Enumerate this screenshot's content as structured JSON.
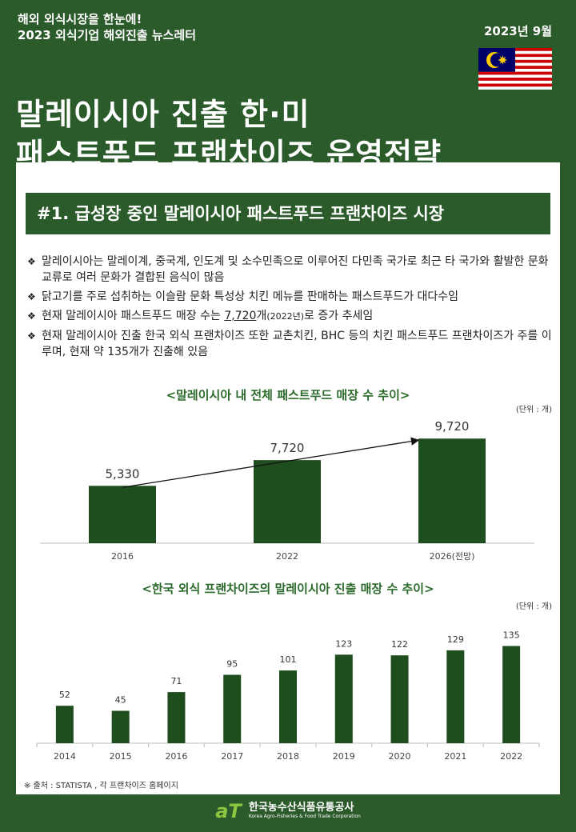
{
  "header": {
    "line1": "해외 외식시장을 한눈에!",
    "line2": "2023 외식기업 해외진출 뉴스레터",
    "date": "2023년 9월",
    "flag_icon": "malaysia-flag-icon"
  },
  "title": {
    "line1": "말레이시아 진출 한·미",
    "line2": "패스트푸드 프랜차이즈 운영전략"
  },
  "section": {
    "heading": "#1. 급성장 중인 말레이시아 패스트푸드 프랜차이즈 시장"
  },
  "bullets": {
    "marker": "❖",
    "b1": "말레이시아는 말레이계, 중국계, 인도계 및 소수민족으로 이루어진 다민족 국가로 최근 타 국가와 활발한 문화교류로 여러 문화가 결합된 음식이 많음",
    "b2": "닭고기를 주로 섭취하는 이슬람 문화 특성상 치킨 메뉴를 판매하는 패스트푸드가 대다수임",
    "b3_pre": "현재 말레이시아 패스트푸드 매장 수는 ",
    "b3_value": "7,720",
    "b3_unit": "개",
    "b3_year": "(2022년)",
    "b3_post": "로 증가 추세임",
    "b4": "현재 말레이시아 진출 한국 외식 프랜차이즈 또한 교촌치킨, BHC 등의 치킨 패스트푸드 프랜차이즈가 주를 이루며, 현재 약 135개가 진출해 있음"
  },
  "chart_data": [
    {
      "type": "bar",
      "title": "<말레이시아 내 전체 패스트푸드 매장 수 추이>",
      "unit": "(단위 : 개)",
      "categories": [
        "2016",
        "2022",
        "2026(전망)"
      ],
      "values": [
        5330,
        7720,
        9720
      ],
      "value_labels": [
        "5,330",
        "7,720",
        "9,720"
      ],
      "ylim": [
        0,
        11000
      ],
      "trend_arrow": true,
      "bar_color": "#1e4d1e"
    },
    {
      "type": "bar",
      "title": "<한국 외식 프랜차이즈의 말레이시아 진출 매장 수 추이>",
      "unit": "(단위 : 개)",
      "categories": [
        "2014",
        "2015",
        "2016",
        "2017",
        "2018",
        "2019",
        "2020",
        "2021",
        "2022"
      ],
      "values": [
        52,
        45,
        71,
        95,
        101,
        123,
        122,
        129,
        135
      ],
      "ylim": [
        0,
        160
      ],
      "bar_color": "#1e4d1e"
    }
  ],
  "source": "※ 출처 : STATISTA , 각 프랜차이즈 홈페이지",
  "footer": {
    "logo_mark": "aT",
    "org_kr": "한국농수산식품유통공사",
    "org_en": "Korea Agro-Fisheries & Food Trade Corporation"
  }
}
